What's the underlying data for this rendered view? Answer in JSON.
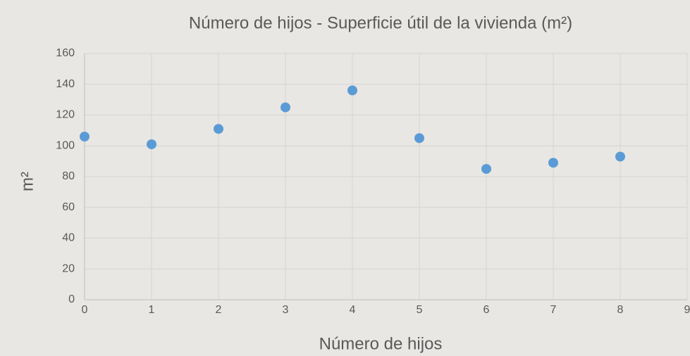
{
  "chart_data": {
    "type": "scatter",
    "title": "Número de hijos - Superficie útil de la vivienda (m²)",
    "x_label": "Número de hijos",
    "y_label": "m²",
    "series": [
      {
        "name": "Superficie",
        "color": "#5b9bd5",
        "x": [
          0,
          1,
          2,
          3,
          4,
          5,
          6,
          7,
          8
        ],
        "values": [
          106,
          101,
          111,
          125,
          136,
          105,
          85,
          89,
          93
        ]
      }
    ],
    "xlim": [
      0,
      9
    ],
    "xticks": [
      0,
      1,
      2,
      3,
      4,
      5,
      6,
      7,
      8,
      9
    ],
    "ylim": [
      0,
      160
    ],
    "yticks": [
      0,
      20,
      40,
      60,
      80,
      100,
      120,
      140,
      160
    ],
    "grid": true
  }
}
